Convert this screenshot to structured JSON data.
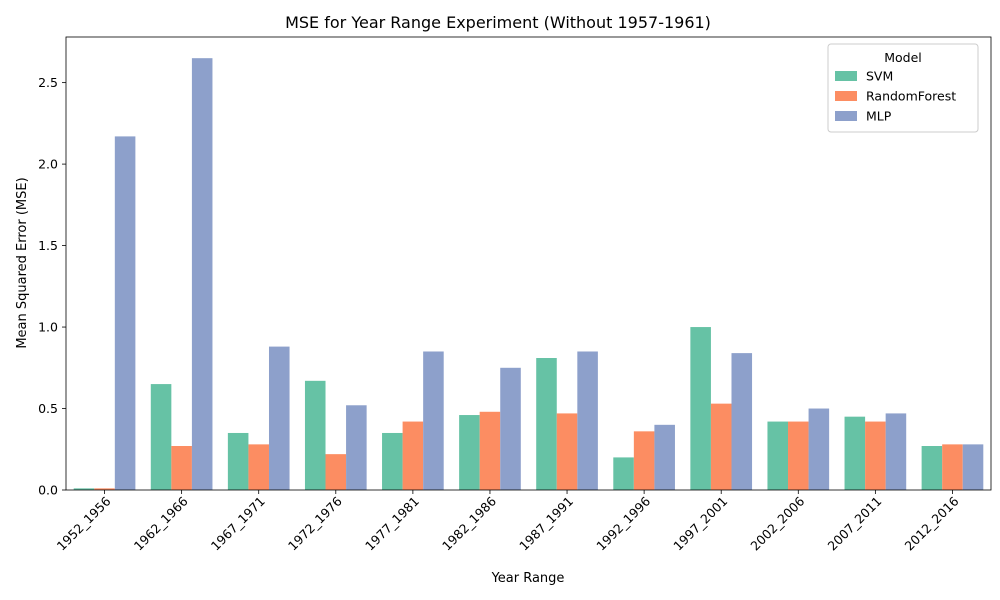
{
  "chart_data": {
    "type": "bar",
    "title": "MSE for Year Range Experiment (Without 1957-1961)",
    "xlabel": "Year Range",
    "ylabel": "Mean Squared Error (MSE)",
    "ylim": [
      0,
      2.78
    ],
    "yticks": [
      "0.0",
      "0.5",
      "1.0",
      "1.5",
      "2.0",
      "2.5"
    ],
    "grid": false,
    "legend": {
      "title": "Model",
      "position": "top-right"
    },
    "categories": [
      "1952_1956",
      "1962_1966",
      "1967_1971",
      "1972_1976",
      "1977_1981",
      "1982_1986",
      "1987_1991",
      "1992_1996",
      "1997_2001",
      "2002_2006",
      "2007_2011",
      "2012_2016"
    ],
    "series": [
      {
        "name": "SVM",
        "color": "#66c2a5",
        "values": [
          0.01,
          0.65,
          0.35,
          0.67,
          0.35,
          0.46,
          0.81,
          0.2,
          1.0,
          0.42,
          0.45,
          0.27
        ]
      },
      {
        "name": "RandomForest",
        "color": "#fc8d62",
        "values": [
          0.01,
          0.27,
          0.28,
          0.22,
          0.42,
          0.48,
          0.47,
          0.36,
          0.53,
          0.42,
          0.42,
          0.28
        ]
      },
      {
        "name": "MLP",
        "color": "#8da0cb",
        "values": [
          2.17,
          2.65,
          0.88,
          0.52,
          0.85,
          0.75,
          0.85,
          0.4,
          0.84,
          0.5,
          0.47,
          0.28
        ]
      }
    ]
  }
}
